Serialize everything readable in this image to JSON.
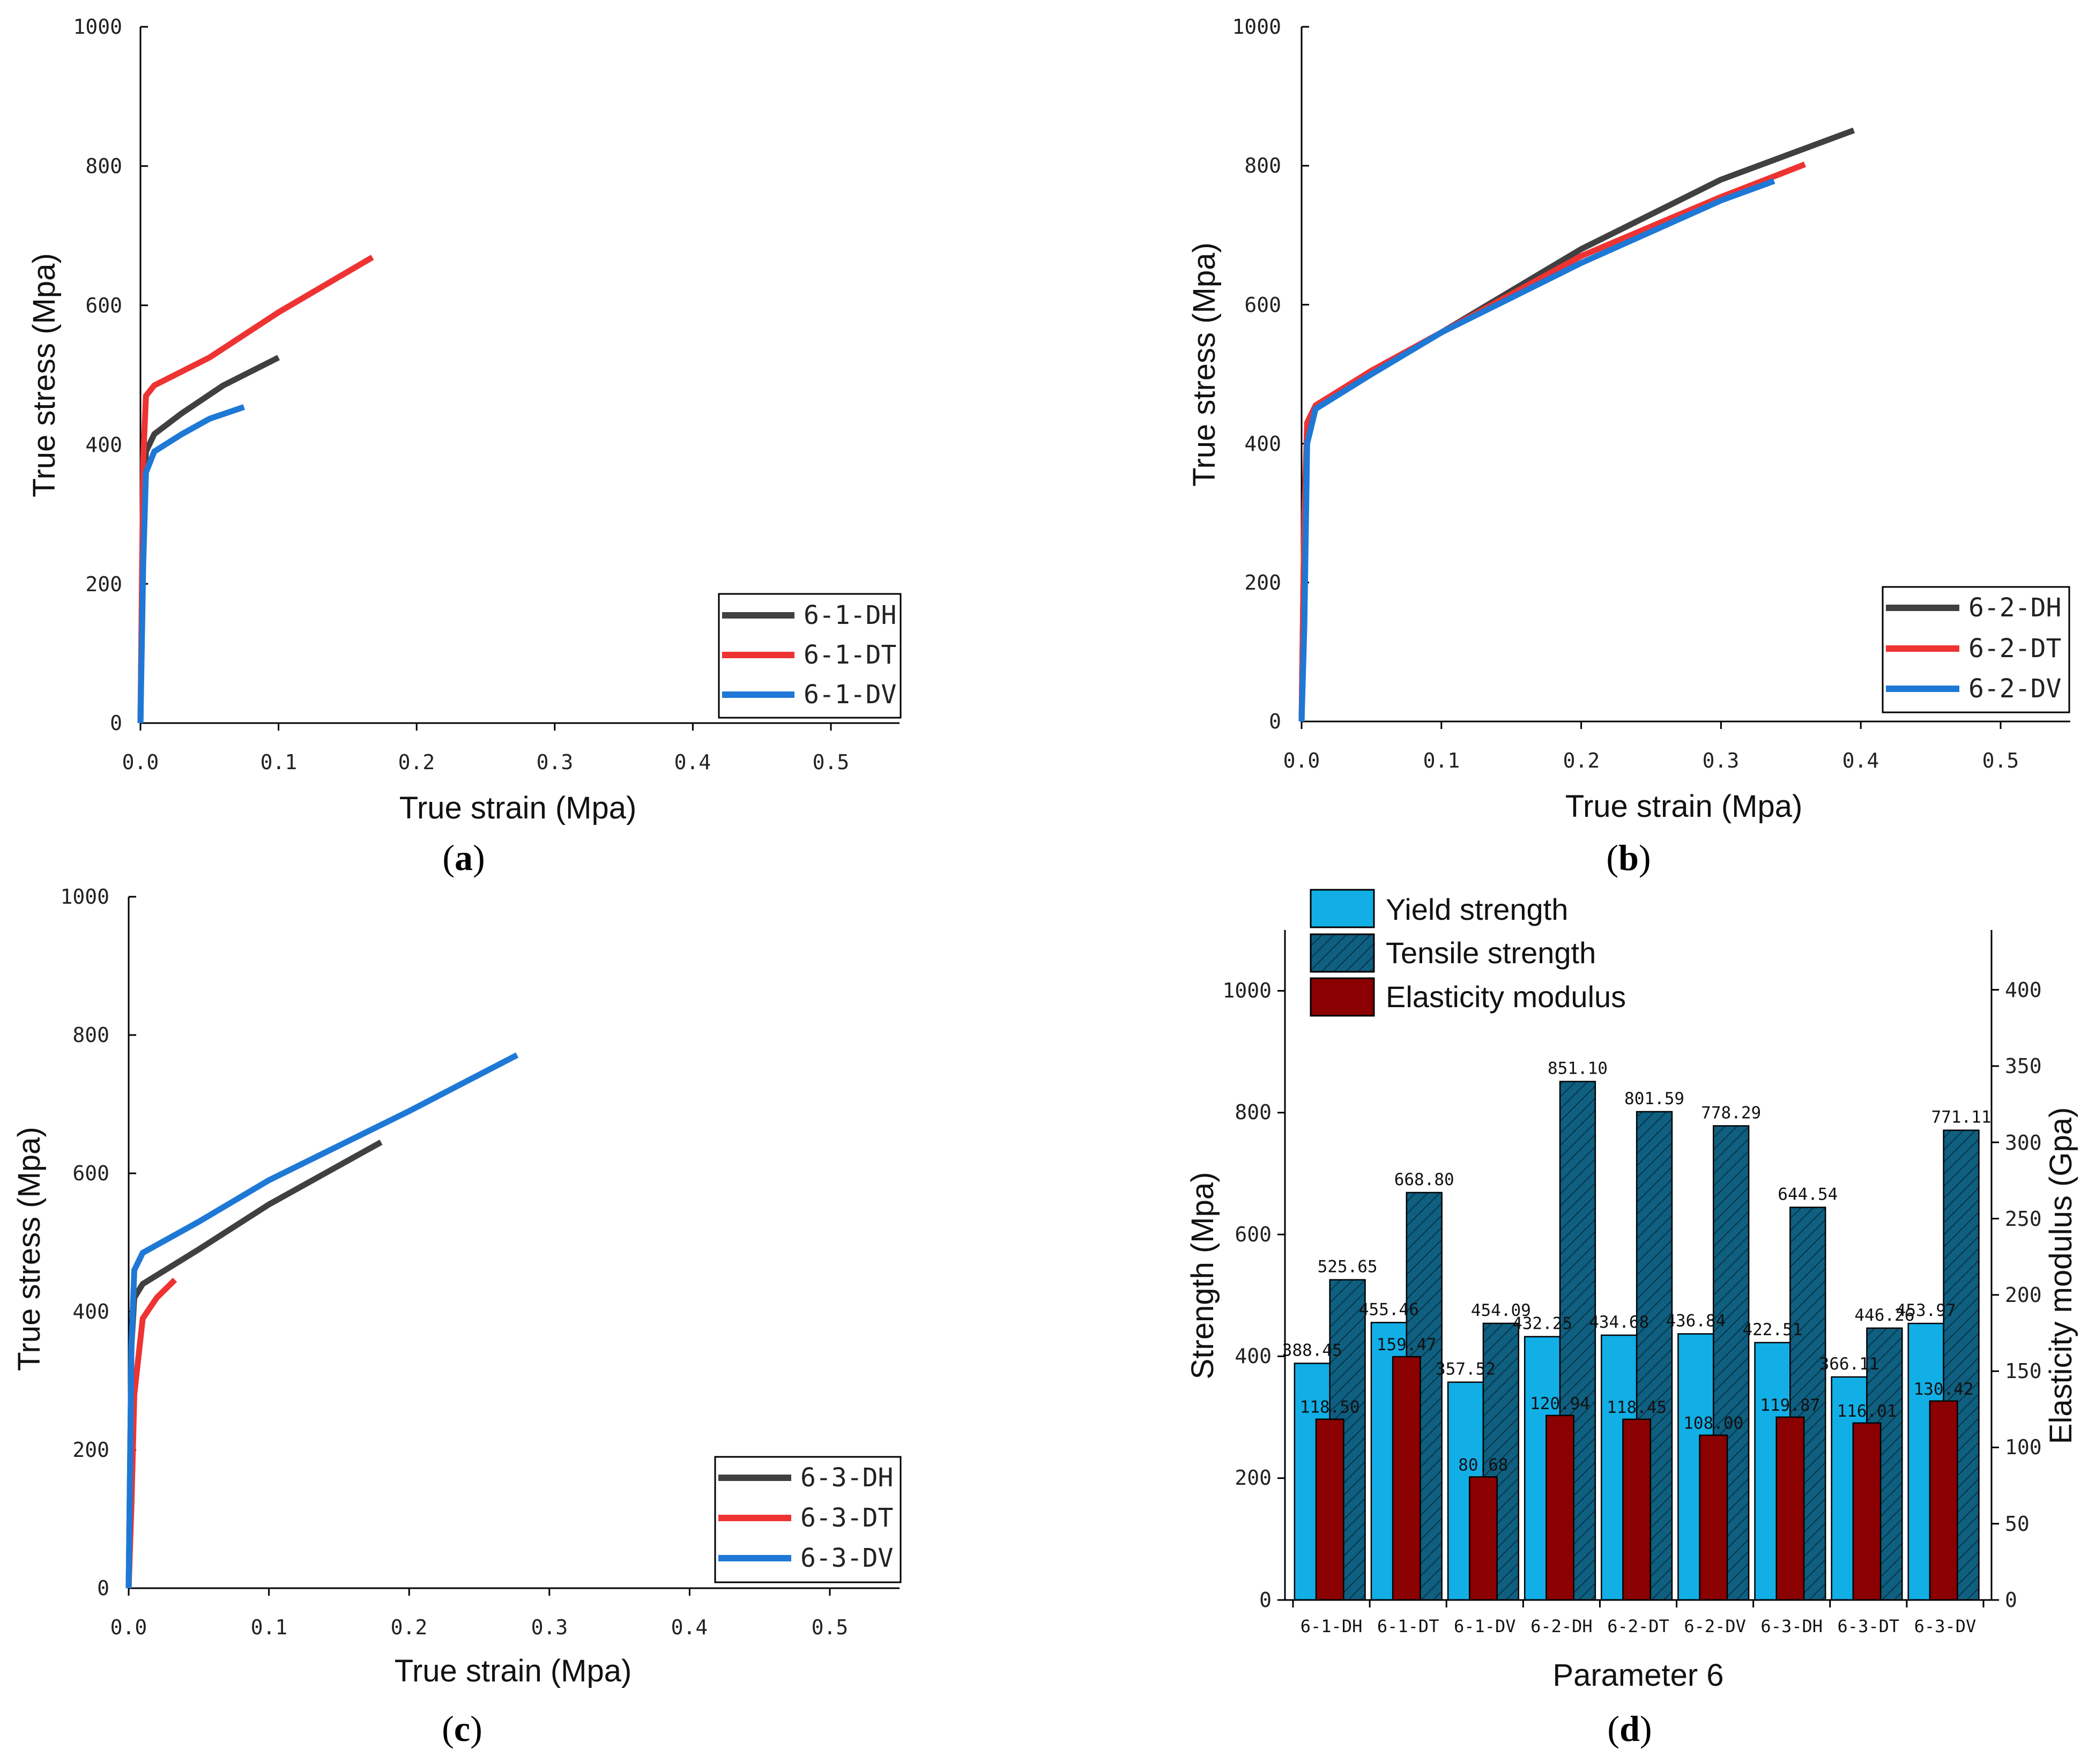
{
  "panels": [
    {
      "label_open": "(",
      "label_letter": "a",
      "label_close": ")",
      "xlabel": "True strain (Mpa)",
      "ylabel": "True stress (Mpa)",
      "xlim": [
        0,
        0.55
      ],
      "ylim": [
        0,
        1000
      ],
      "xticks": [
        "0.0",
        "0.1",
        "0.2",
        "0.3",
        "0.4",
        "0.5"
      ],
      "yticks": [
        "0",
        "200",
        "400",
        "600",
        "800",
        "1000"
      ],
      "legend": [
        "6-1-DH",
        "6-1-DT",
        "6-1-DV"
      ]
    },
    {
      "label_open": "(",
      "label_letter": "b",
      "label_close": ")",
      "xlabel": "True strain (Mpa)",
      "ylabel": "True stress (Mpa)",
      "xlim": [
        0,
        0.55
      ],
      "ylim": [
        0,
        1000
      ],
      "xticks": [
        "0.0",
        "0.1",
        "0.2",
        "0.3",
        "0.4",
        "0.5"
      ],
      "yticks": [
        "0",
        "200",
        "400",
        "600",
        "800",
        "1000"
      ],
      "legend": [
        "6-2-DH",
        "6-2-DT",
        "6-2-DV"
      ]
    },
    {
      "label_open": "(",
      "label_letter": "c",
      "label_close": ")",
      "xlabel": "True strain (Mpa)",
      "ylabel": "True stress (Mpa)",
      "xlim": [
        0,
        0.55
      ],
      "ylim": [
        0,
        1000
      ],
      "xticks": [
        "0.0",
        "0.1",
        "0.2",
        "0.3",
        "0.4",
        "0.5"
      ],
      "yticks": [
        "0",
        "200",
        "400",
        "600",
        "800",
        "1000"
      ],
      "legend": [
        "6-3-DH",
        "6-3-DT",
        "6-3-DV"
      ]
    },
    {
      "label_open": "(",
      "label_letter": "d",
      "label_close": ")",
      "xlabel": "Parameter 6",
      "ylabel": "Strength (Mpa)",
      "y2label": "Elasticity modulus (Gpa)",
      "yticks": [
        "0",
        "200",
        "400",
        "600",
        "800",
        "1000"
      ],
      "y2ticks": [
        "0",
        "50",
        "100",
        "150",
        "200",
        "250",
        "300",
        "350",
        "400"
      ],
      "legend": [
        "Yield strength",
        "Tensile strength",
        "Elasticity modulus"
      ]
    }
  ],
  "colors": {
    "DH": "#404040",
    "DT": "#ee3333",
    "DV": "#1e78d6",
    "yield": "#12aee6",
    "tensile": "#0f5f80",
    "modulus": "#8b0000"
  },
  "chart_data": [
    {
      "type": "line",
      "title": "(a)",
      "xlabel": "True strain (Mpa)",
      "ylabel": "True stress (Mpa)",
      "xlim": [
        0,
        0.55
      ],
      "ylim": [
        0,
        1000
      ],
      "series": [
        {
          "name": "6-1-DH",
          "key": "DH",
          "x": [
            0,
            0.002,
            0.004,
            0.01,
            0.03,
            0.06,
            0.1
          ],
          "y": [
            0,
            300,
            390,
            415,
            445,
            485,
            525
          ]
        },
        {
          "name": "6-1-DT",
          "key": "DT",
          "x": [
            0,
            0.002,
            0.004,
            0.01,
            0.05,
            0.1,
            0.168
          ],
          "y": [
            0,
            380,
            470,
            485,
            525,
            590,
            669
          ]
        },
        {
          "name": "6-1-DV",
          "key": "DV",
          "x": [
            0,
            0.002,
            0.004,
            0.01,
            0.03,
            0.05,
            0.075
          ],
          "y": [
            0,
            230,
            360,
            390,
            415,
            437,
            454
          ]
        }
      ]
    },
    {
      "type": "line",
      "title": "(b)",
      "xlabel": "True strain (Mpa)",
      "ylabel": "True stress (Mpa)",
      "xlim": [
        0,
        0.55
      ],
      "ylim": [
        0,
        1000
      ],
      "series": [
        {
          "name": "6-2-DH",
          "key": "DH",
          "x": [
            0,
            0.002,
            0.004,
            0.01,
            0.05,
            0.1,
            0.2,
            0.3,
            0.395
          ],
          "y": [
            0,
            300,
            420,
            450,
            500,
            560,
            680,
            780,
            851
          ]
        },
        {
          "name": "6-2-DT",
          "key": "DT",
          "x": [
            0,
            0.002,
            0.004,
            0.01,
            0.05,
            0.1,
            0.2,
            0.3,
            0.36
          ],
          "y": [
            0,
            300,
            430,
            455,
            505,
            560,
            670,
            755,
            802
          ]
        },
        {
          "name": "6-2-DV",
          "key": "DV",
          "x": [
            0,
            0.002,
            0.004,
            0.01,
            0.05,
            0.1,
            0.2,
            0.3,
            0.338
          ],
          "y": [
            0,
            140,
            400,
            450,
            500,
            560,
            660,
            750,
            778
          ]
        }
      ]
    },
    {
      "type": "line",
      "title": "(c)",
      "xlabel": "True strain (Mpa)",
      "ylabel": "True stress (Mpa)",
      "xlim": [
        0,
        0.55
      ],
      "ylim": [
        0,
        1000
      ],
      "series": [
        {
          "name": "6-3-DH",
          "key": "DH",
          "x": [
            0,
            0.002,
            0.004,
            0.01,
            0.05,
            0.1,
            0.18
          ],
          "y": [
            0,
            350,
            420,
            440,
            490,
            555,
            645
          ]
        },
        {
          "name": "6-3-DT",
          "key": "DT",
          "x": [
            0,
            0.002,
            0.004,
            0.01,
            0.02,
            0.033
          ],
          "y": [
            0,
            120,
            280,
            390,
            420,
            446
          ]
        },
        {
          "name": "6-3-DV",
          "key": "DV",
          "x": [
            0,
            0.002,
            0.004,
            0.01,
            0.05,
            0.1,
            0.2,
            0.277
          ],
          "y": [
            0,
            350,
            460,
            485,
            530,
            590,
            690,
            771
          ]
        }
      ]
    },
    {
      "type": "bar",
      "title": "(d)",
      "xlabel": "Parameter 6",
      "ylabel": "Strength (Mpa)",
      "y2label": "Elasticity modulus (Gpa)",
      "ylim": [
        0,
        1100
      ],
      "y2lim": [
        0,
        440
      ],
      "categories": [
        "6-1-DH",
        "6-1-DT",
        "6-1-DV",
        "6-2-DH",
        "6-2-DT",
        "6-2-DV",
        "6-3-DH",
        "6-3-DT",
        "6-3-DV"
      ],
      "series": [
        {
          "name": "Yield strength",
          "axis": "left",
          "values": [
            388.45,
            455.46,
            357.52,
            432.25,
            434.68,
            436.84,
            422.51,
            366.11,
            453.97
          ],
          "labels": [
            "388.45",
            "455.46",
            "357.52",
            "432.25",
            "434.68",
            "436.84",
            "422.51",
            "366.11",
            "453.97"
          ]
        },
        {
          "name": "Tensile strength",
          "axis": "left",
          "values": [
            525.65,
            668.8,
            454.09,
            851.1,
            801.59,
            778.29,
            644.54,
            446.26,
            771.11
          ],
          "labels": [
            "525.65",
            "668.80",
            "454.09",
            "851.10",
            "801.59",
            "778.29",
            "644.54",
            "446.26",
            "771.11"
          ]
        },
        {
          "name": "Elasticity modulus",
          "axis": "right",
          "values": [
            118.5,
            159.47,
            80.68,
            120.94,
            118.45,
            108.0,
            119.87,
            116.01,
            130.42
          ],
          "labels": [
            "118.50",
            "159.47",
            "80.68",
            "120.94",
            "118.45",
            "108.00",
            "119.87",
            "116.01",
            "130.42"
          ]
        }
      ]
    }
  ]
}
